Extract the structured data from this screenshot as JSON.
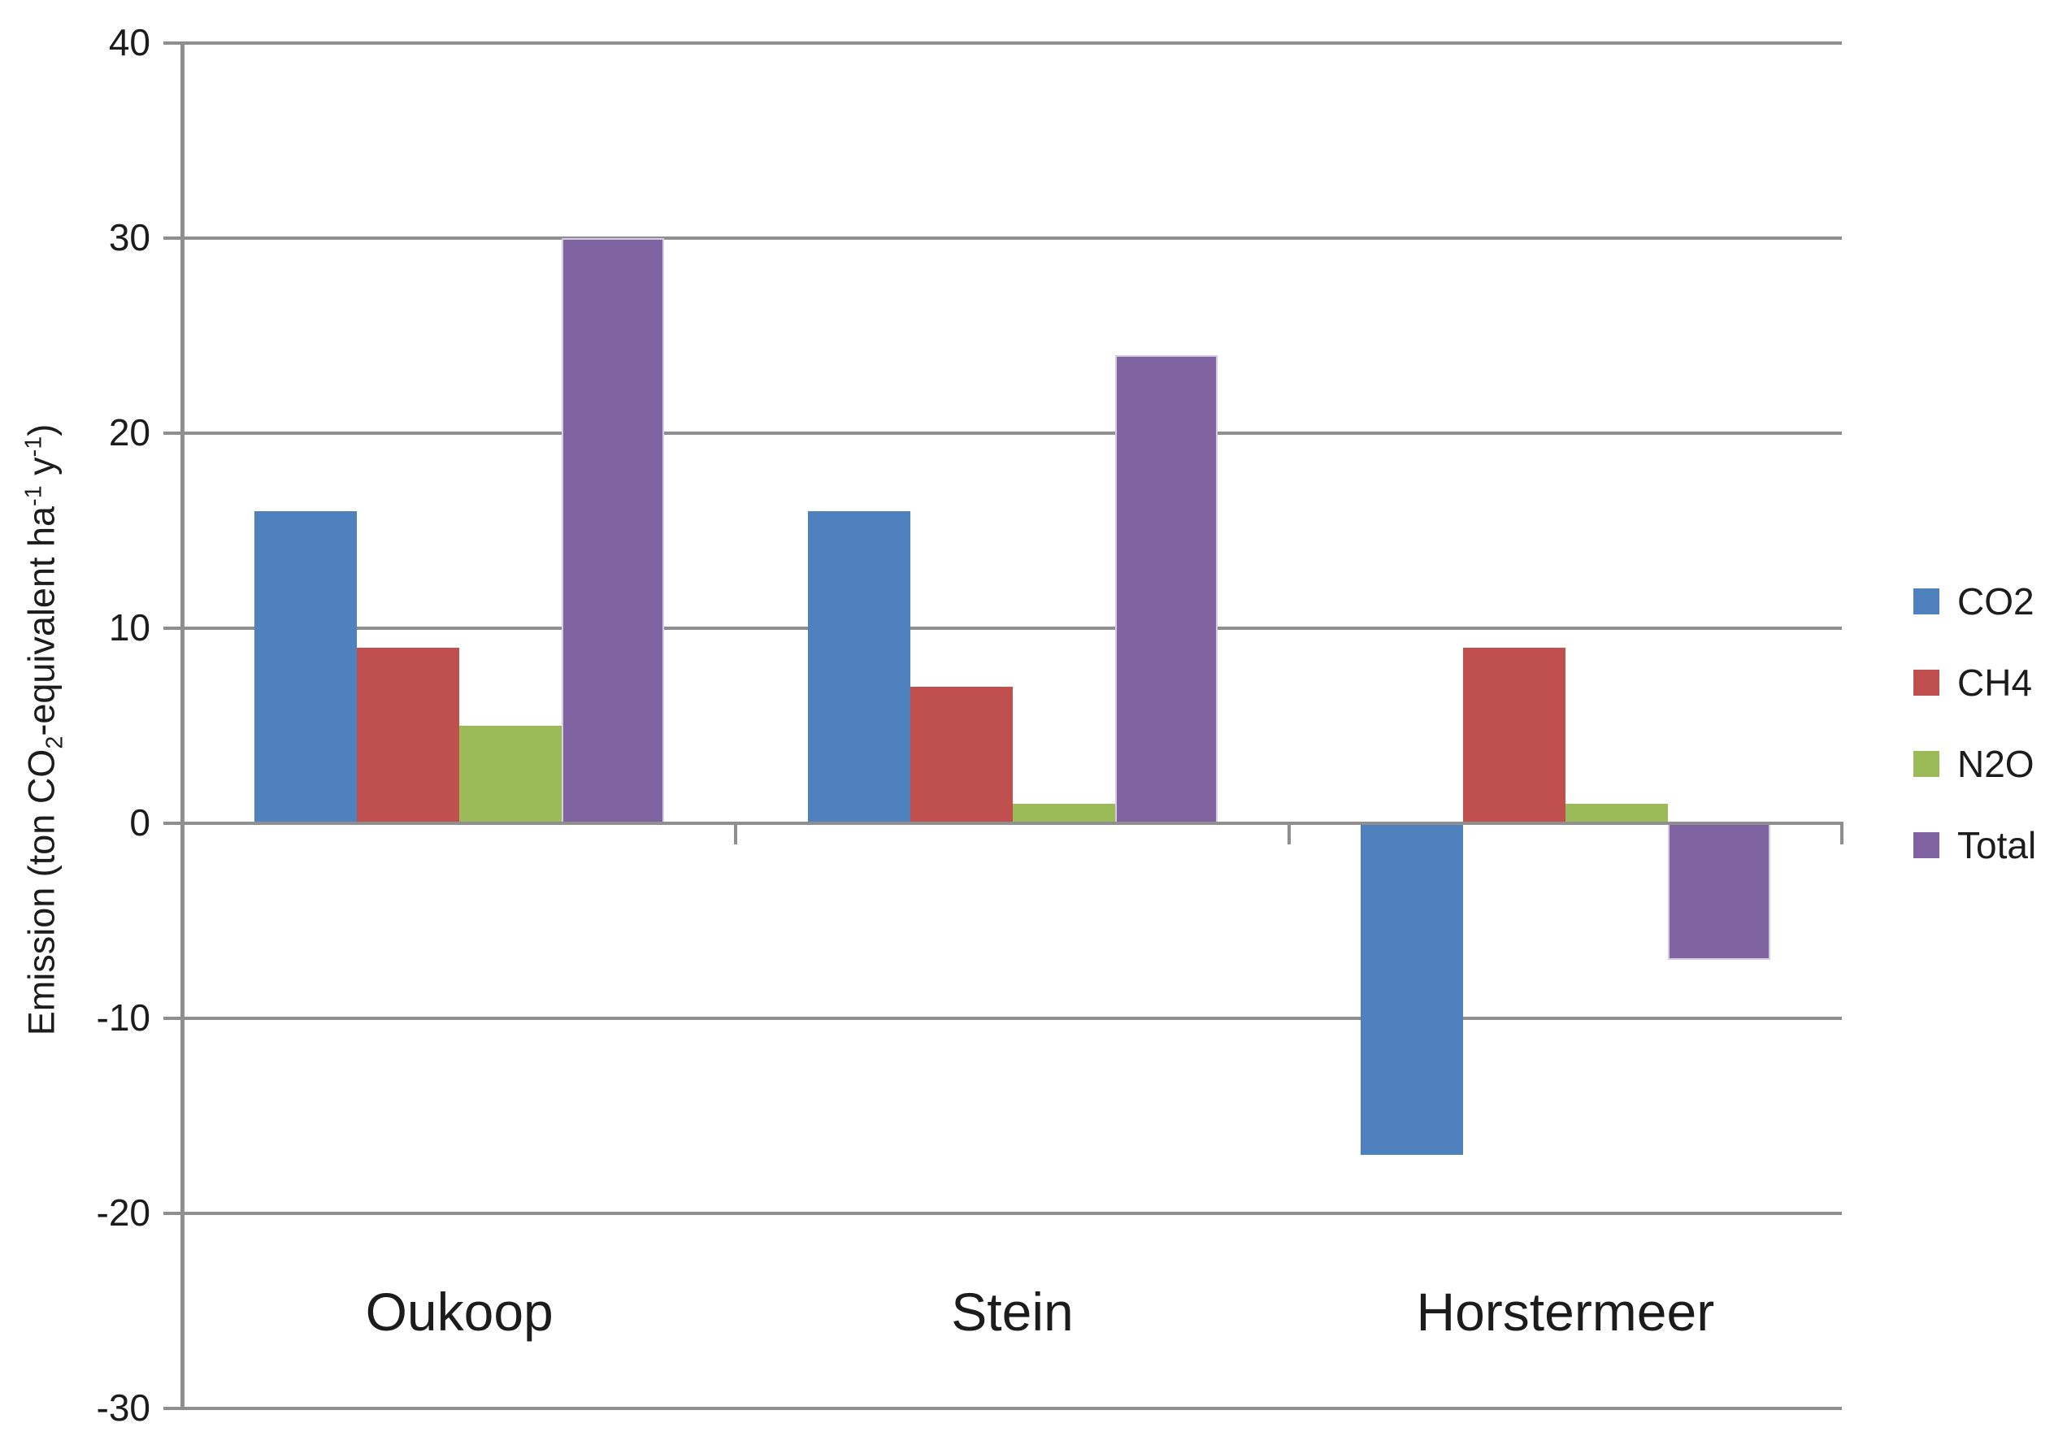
{
  "chart_data": {
    "type": "bar",
    "title": "",
    "categories": [
      "Oukoop",
      "Stein",
      "Horstermeer"
    ],
    "series": [
      {
        "name": "CO2",
        "color": "#4E81BD",
        "values": [
          16,
          16,
          -17
        ]
      },
      {
        "name": "CH4",
        "color": "#C0504D",
        "values": [
          9,
          7,
          9
        ]
      },
      {
        "name": "N2O",
        "color": "#9BBB59",
        "values": [
          5,
          1,
          1
        ]
      },
      {
        "name": "Total",
        "color": "#8064A2",
        "border_color": "#D5CCE3",
        "values": [
          30,
          24,
          -7
        ]
      }
    ],
    "ylim": [
      -30,
      40
    ],
    "yticks": [
      40,
      30,
      20,
      10,
      0,
      -10,
      -20,
      -30
    ],
    "ylabel": "Emission (ton CO2-equivalent ha-1 y-1)",
    "ylabel_parts": [
      {
        "text": "Emission (ton CO"
      },
      {
        "text": "2",
        "style": "sub"
      },
      {
        "text": "-equivalent ha"
      },
      {
        "text": "-1",
        "style": "sup"
      },
      {
        "text": " y"
      },
      {
        "text": "-1",
        "style": "sup"
      },
      {
        "text": ")"
      }
    ],
    "xlabel": "",
    "grid": true,
    "legend_position": "right",
    "legend_entries": [
      "CO2",
      "CH4",
      "N2O",
      "Total"
    ]
  },
  "colors": {
    "grid": "#8F8F8F",
    "axis": "#8F8F8F",
    "text": "#1C1C1C",
    "background": "#FFFFFF"
  }
}
